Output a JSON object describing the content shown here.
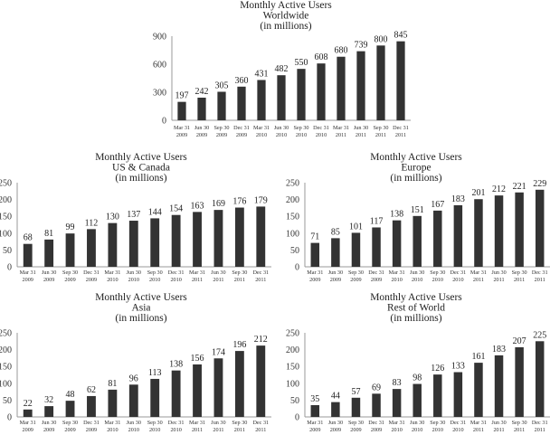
{
  "chart_data": [
    {
      "type": "bar",
      "title": [
        "Monthly Active Users",
        "Worldwide",
        "(in millions)"
      ],
      "categories": [
        [
          "Mar 31",
          "2009"
        ],
        [
          "Jun 30",
          "2009"
        ],
        [
          "Sep 30",
          "2009"
        ],
        [
          "Dec 31",
          "2009"
        ],
        [
          "Mar 31",
          "2010"
        ],
        [
          "Jun 30",
          "2010"
        ],
        [
          "Sep 30",
          "2010"
        ],
        [
          "Dec 31",
          "2010"
        ],
        [
          "Mar 31",
          "2011"
        ],
        [
          "Jun 30",
          "2011"
        ],
        [
          "Sep 30",
          "2011"
        ],
        [
          "Dec 31",
          "2011"
        ]
      ],
      "values": [
        197,
        242,
        305,
        360,
        431,
        482,
        550,
        608,
        680,
        739,
        800,
        845
      ],
      "yticks": [
        0,
        300,
        600,
        900
      ],
      "ylim": [
        0,
        900
      ],
      "bar_color": "#333333",
      "grid": false
    },
    {
      "type": "bar",
      "title": [
        "Monthly Active Users",
        "US & Canada",
        "(in millions)"
      ],
      "categories": [
        [
          "Mar 31",
          "2009"
        ],
        [
          "Jun 30",
          "2009"
        ],
        [
          "Sep 30",
          "2009"
        ],
        [
          "Dec 31",
          "2009"
        ],
        [
          "Mar 31",
          "2010"
        ],
        [
          "Jun 30",
          "2010"
        ],
        [
          "Sep 30",
          "2010"
        ],
        [
          "Dec 31",
          "2010"
        ],
        [
          "Mar 31",
          "2011"
        ],
        [
          "Jun 30",
          "2011"
        ],
        [
          "Sep 30",
          "2011"
        ],
        [
          "Dec 31",
          "2011"
        ]
      ],
      "values": [
        68,
        81,
        99,
        112,
        130,
        137,
        144,
        154,
        163,
        169,
        176,
        179
      ],
      "yticks": [
        0,
        50,
        100,
        150,
        200,
        250
      ],
      "ylim": [
        0,
        250
      ],
      "bar_color": "#333333",
      "grid": false
    },
    {
      "type": "bar",
      "title": [
        "Monthly Active Users",
        "Europe",
        "(in millions)"
      ],
      "categories": [
        [
          "Mar 31",
          "2009"
        ],
        [
          "Jun 30",
          "2009"
        ],
        [
          "Sep 30",
          "2009"
        ],
        [
          "Dec 31",
          "2009"
        ],
        [
          "Mar 31",
          "2010"
        ],
        [
          "Jun 30",
          "2010"
        ],
        [
          "Sep 30",
          "2010"
        ],
        [
          "Dec 31",
          "2010"
        ],
        [
          "Mar 31",
          "2011"
        ],
        [
          "Jun 30",
          "2011"
        ],
        [
          "Sep 30",
          "2011"
        ],
        [
          "Dec 31",
          "2011"
        ]
      ],
      "values": [
        71,
        85,
        101,
        117,
        138,
        151,
        167,
        183,
        201,
        212,
        221,
        229
      ],
      "yticks": [
        0,
        50,
        100,
        150,
        200,
        250
      ],
      "ylim": [
        0,
        250
      ],
      "bar_color": "#333333",
      "grid": false
    },
    {
      "type": "bar",
      "title": [
        "Monthly Active Users",
        "Asia",
        "(in millions)"
      ],
      "categories": [
        [
          "Mar 31",
          "2009"
        ],
        [
          "Jun 30",
          "2009"
        ],
        [
          "Sep 30",
          "2009"
        ],
        [
          "Dec 31",
          "2009"
        ],
        [
          "Mar 31",
          "2010"
        ],
        [
          "Jun 30",
          "2010"
        ],
        [
          "Sep 30",
          "2010"
        ],
        [
          "Dec 31",
          "2010"
        ],
        [
          "Mar 31",
          "2011"
        ],
        [
          "Jun 30",
          "2011"
        ],
        [
          "Sep 30",
          "2011"
        ],
        [
          "Dec 31",
          "2011"
        ]
      ],
      "values": [
        22,
        32,
        48,
        62,
        81,
        96,
        113,
        138,
        156,
        174,
        196,
        212
      ],
      "yticks": [
        0,
        50,
        100,
        150,
        200,
        250
      ],
      "ylim": [
        0,
        250
      ],
      "bar_color": "#333333",
      "grid": false
    },
    {
      "type": "bar",
      "title": [
        "Monthly Active Users",
        "Rest of World",
        "(in millions)"
      ],
      "categories": [
        [
          "Mar 31",
          "2009"
        ],
        [
          "Jun 30",
          "2009"
        ],
        [
          "Sep 30",
          "2009"
        ],
        [
          "Dec 31",
          "2009"
        ],
        [
          "Mar 31",
          "2010"
        ],
        [
          "Jun 30",
          "2010"
        ],
        [
          "Sep 30",
          "2010"
        ],
        [
          "Dec 31",
          "2010"
        ],
        [
          "Mar 31",
          "2011"
        ],
        [
          "Jun 30",
          "2011"
        ],
        [
          "Sep 30",
          "2011"
        ],
        [
          "Dec 31",
          "2011"
        ]
      ],
      "values": [
        35,
        44,
        57,
        69,
        83,
        98,
        126,
        133,
        161,
        183,
        207,
        225
      ],
      "yticks": [
        0,
        50,
        100,
        150,
        200,
        250
      ],
      "ylim": [
        0,
        250
      ],
      "bar_color": "#333333",
      "grid": false
    }
  ]
}
